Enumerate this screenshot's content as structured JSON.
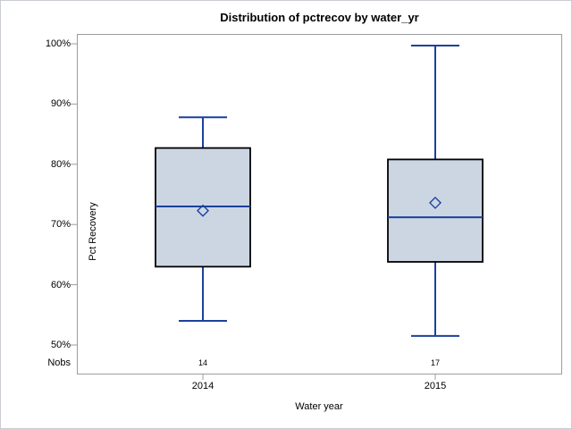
{
  "chart_data": {
    "type": "boxplot",
    "title": "Distribution of pctrecov by water_yr",
    "xlabel": "Water year",
    "ylabel": "Pct Recovery",
    "nobs_label": "Nobs",
    "y_ticks": [
      {
        "label": "100%",
        "value": 100
      },
      {
        "label": "90%",
        "value": 90
      },
      {
        "label": "80%",
        "value": 80
      },
      {
        "label": "70%",
        "value": 70
      },
      {
        "label": "60%",
        "value": 60
      },
      {
        "label": "50%",
        "value": 50
      }
    ],
    "ylim": [
      50,
      100
    ],
    "grid": false,
    "legend": "none",
    "categories": [
      "2014",
      "2015"
    ],
    "series": [
      {
        "category": "2014",
        "whisker_low": 54.0,
        "q1": 63.0,
        "median": 73.0,
        "mean": 72.3,
        "q3": 82.7,
        "whisker_high": 87.8,
        "nobs": "14"
      },
      {
        "category": "2015",
        "whisker_low": 51.5,
        "q1": 63.8,
        "median": 71.2,
        "mean": 73.6,
        "q3": 80.8,
        "whisker_high": 99.7,
        "nobs": "17"
      }
    ]
  },
  "colors": {
    "box_fill": "#ccd6e3",
    "box_border": "#000000",
    "line_blue": "#1c409c",
    "frame_gray": "#9a9da1",
    "text": "#000000"
  }
}
